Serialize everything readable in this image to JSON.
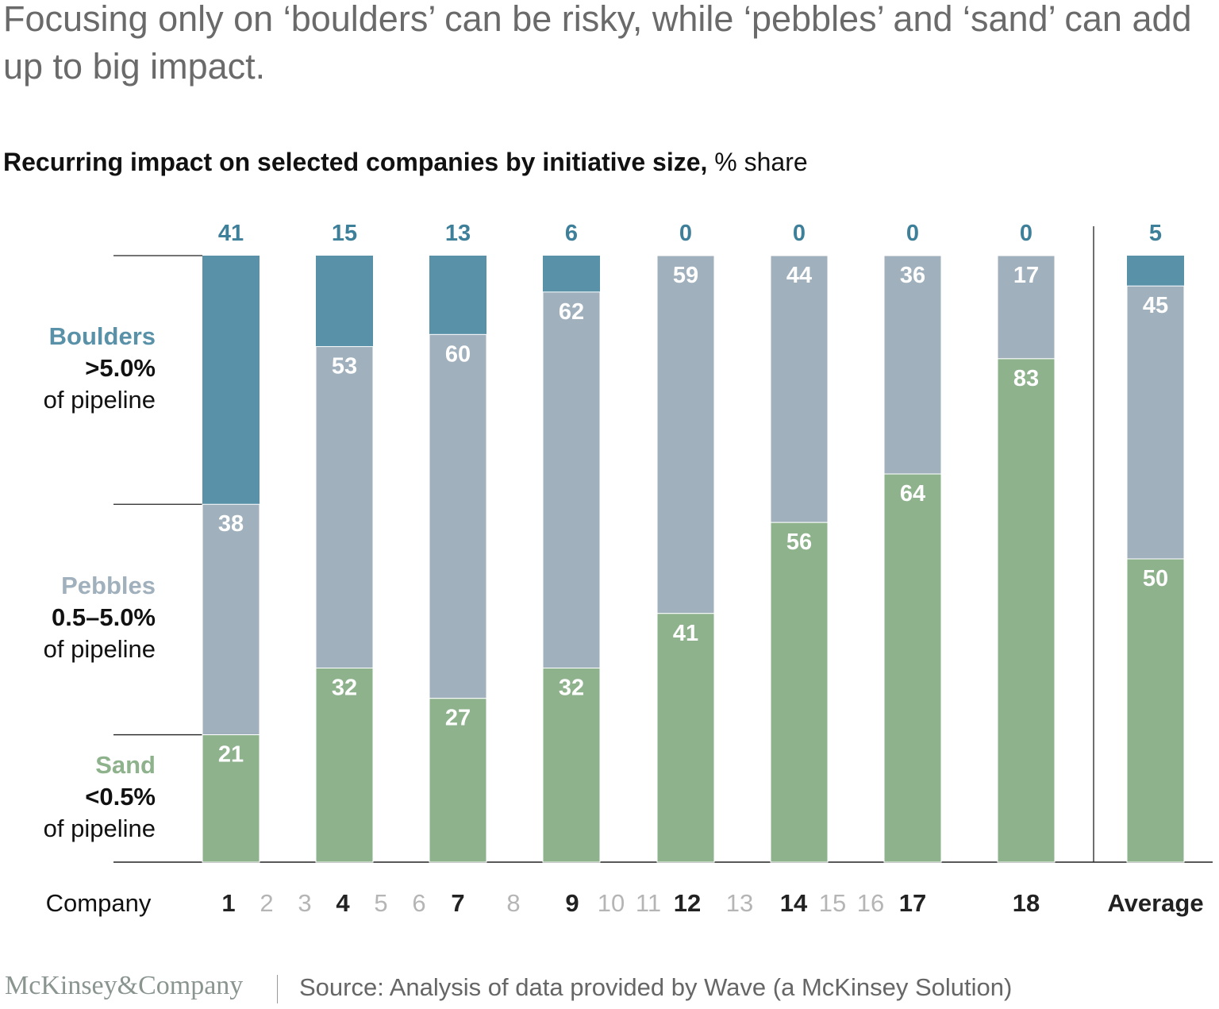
{
  "title": "Focusing only on ‘boulders’ can be risky, while ‘pebbles’ and ‘sand’ can add up to big impact.",
  "subtitle": {
    "bold": "Recurring impact on selected companies by initiative size,",
    "unit": "% share"
  },
  "legend": [
    {
      "name": "Boulders",
      "threshold": ">5.0%",
      "suffix": "of pipeline",
      "color": "#5891a8"
    },
    {
      "name": "Pebbles",
      "threshold": "0.5–5.0%",
      "suffix": "of pipeline",
      "color": "#a0b0bc"
    },
    {
      "name": "Sand",
      "threshold": "<0.5%",
      "suffix": "of pipeline",
      "color": "#8db28c"
    }
  ],
  "chart_data": {
    "type": "stacked-bar",
    "xlabel": "Company",
    "categories": [
      "1",
      "4",
      "7",
      "9",
      "12",
      "14",
      "17",
      "18",
      "Average"
    ],
    "series": [
      {
        "name": "Boulders",
        "values": [
          41,
          15,
          13,
          6,
          0,
          0,
          0,
          0,
          5
        ]
      },
      {
        "name": "Pebbles",
        "values": [
          38,
          53,
          60,
          62,
          59,
          44,
          36,
          17,
          45
        ]
      },
      {
        "name": "Sand",
        "values": [
          21,
          32,
          27,
          32,
          41,
          56,
          64,
          83,
          50
        ]
      }
    ],
    "ylim": [
      0,
      100
    ],
    "unselected_company_labels": [
      "2",
      "3",
      "5",
      "6",
      "8",
      "10",
      "11",
      "13",
      "15",
      "16"
    ]
  },
  "footer": {
    "logo": "McKinsey&Company",
    "source": "Source: Analysis of data provided by Wave (a McKinsey Solution)"
  }
}
